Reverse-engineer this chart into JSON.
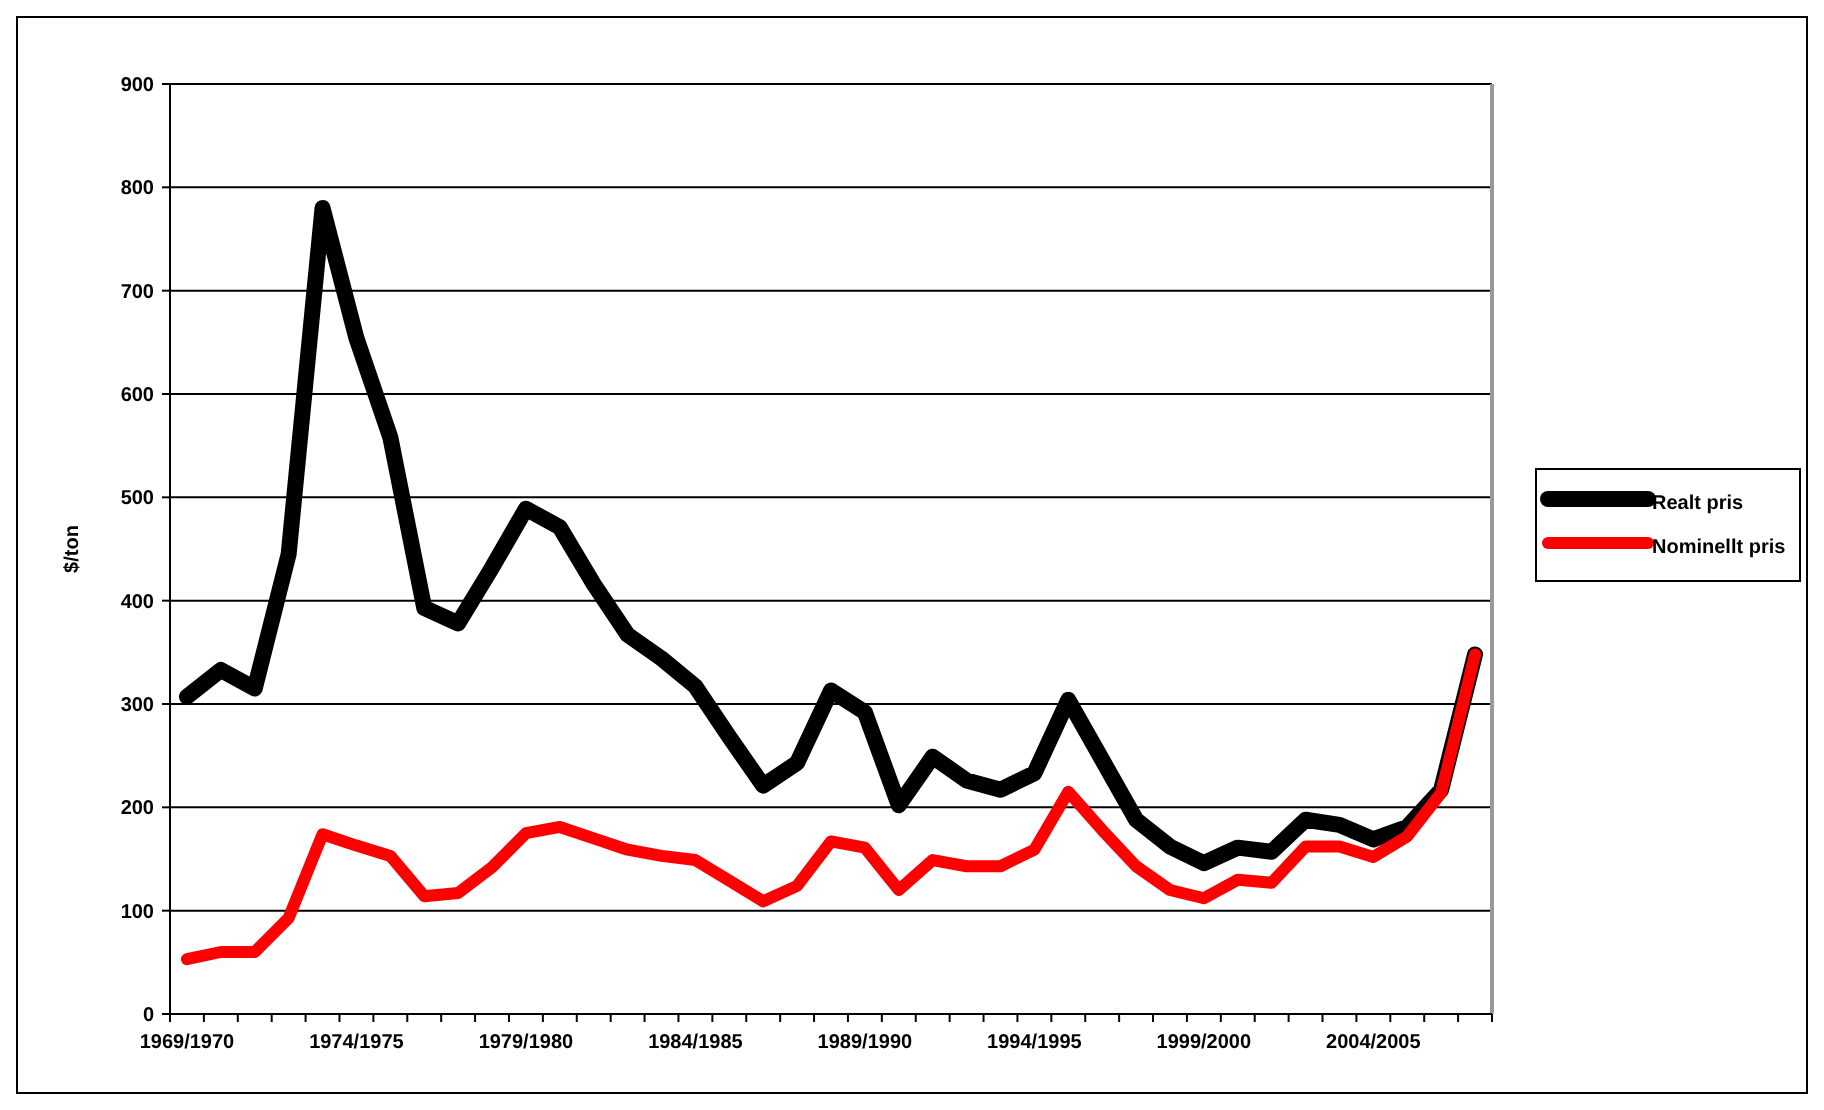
{
  "chart_data": {
    "type": "line",
    "ylabel": "$/ton",
    "categories": [
      "1969/1970",
      null,
      null,
      null,
      null,
      "1974/1975",
      null,
      null,
      null,
      null,
      "1979/1980",
      null,
      null,
      null,
      null,
      "1984/1985",
      null,
      null,
      null,
      null,
      "1989/1990",
      null,
      null,
      null,
      null,
      "1994/1995",
      null,
      null,
      null,
      null,
      "1999/2000",
      null,
      null,
      null,
      null,
      "2004/2005",
      null,
      null,
      null
    ],
    "series": [
      {
        "name": "Realt pris",
        "color": "#000000",
        "values": [
          307,
          333,
          315,
          445,
          780,
          654,
          558,
          393,
          378,
          432,
          489,
          471,
          416,
          367,
          344,
          317,
          268,
          221,
          243,
          313,
          292,
          202,
          249,
          226,
          217,
          233,
          304,
          246,
          188,
          162,
          146,
          161,
          157,
          188,
          183,
          169,
          181,
          217,
          348
        ]
      },
      {
        "name": "Nominellt pris",
        "color": "#ff0000",
        "values": [
          53,
          60,
          60,
          93,
          174,
          163,
          153,
          114,
          117,
          142,
          175,
          181,
          170,
          159,
          153,
          149,
          129,
          109,
          124,
          167,
          161,
          120,
          149,
          143,
          143,
          159,
          215,
          178,
          143,
          120,
          112,
          130,
          127,
          162,
          162,
          152,
          172,
          214,
          348
        ]
      }
    ],
    "ylim": [
      0,
      900
    ],
    "yticks": [
      0,
      100,
      200,
      300,
      400,
      500,
      600,
      700,
      800,
      900
    ],
    "grid": "y",
    "legend": "right",
    "line_style": "solid",
    "marker": "none"
  }
}
